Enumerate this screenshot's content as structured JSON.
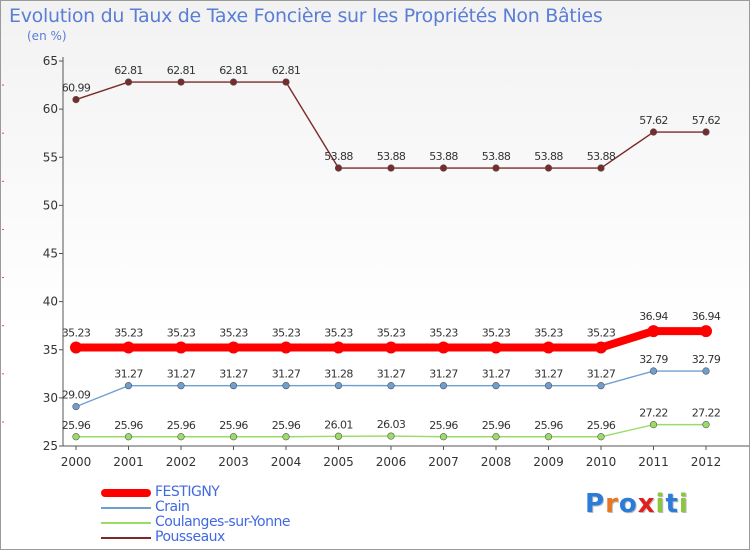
{
  "title": "Evolution du Taux de Taxe Foncière sur les Propriétés Non Bâties",
  "subtitle": "(en %)",
  "logo": {
    "text": "Proxiti",
    "colors": [
      "#2b7bd8",
      "#e87722",
      "#2b7bd8",
      "#e02020",
      "#8cc63f",
      "#2b7bd8",
      "#8cc63f"
    ]
  },
  "chart_data": {
    "type": "line",
    "title": "Evolution du Taux de Taxe Foncière sur les Propriétés Non Bâties",
    "ylabel": "(en %)",
    "xlabel": "",
    "categories": [
      "2000",
      "2001",
      "2002",
      "2003",
      "2004",
      "2005",
      "2006",
      "2007",
      "2008",
      "2009",
      "2010",
      "2011",
      "2012"
    ],
    "ylim": [
      25,
      65
    ],
    "yticks": [
      25,
      30,
      35,
      40,
      45,
      50,
      55,
      60,
      65
    ],
    "grid": false,
    "legend": "bottom-left",
    "series": [
      {
        "name": "FESTIGNY",
        "color": "#ff0000",
        "emphasis": true,
        "values": [
          35.23,
          35.23,
          35.23,
          35.23,
          35.23,
          35.23,
          35.23,
          35.23,
          35.23,
          35.23,
          35.23,
          36.94,
          36.94
        ],
        "labels": [
          "35.23",
          "35.23",
          "35.23",
          "35.23",
          "35.23",
          "35.23",
          "35.23",
          "35.23",
          "35.23",
          "35.23",
          "35.23",
          "36.94",
          "36.94"
        ]
      },
      {
        "name": "Crain",
        "color": "#6f9fd0",
        "values": [
          29.09,
          31.27,
          31.27,
          31.27,
          31.27,
          31.28,
          31.27,
          31.27,
          31.27,
          31.27,
          31.27,
          32.79,
          32.79
        ],
        "labels": [
          "29.09",
          "31.27",
          "31.27",
          "31.27",
          "31.27",
          "31.28",
          "31.27",
          "31.27",
          "31.27",
          "31.27",
          "31.27",
          "32.79",
          "32.79"
        ]
      },
      {
        "name": "Coulanges-sur-Yonne",
        "color": "#99dd66",
        "values": [
          25.96,
          25.96,
          25.96,
          25.96,
          25.96,
          26.01,
          26.03,
          25.96,
          25.96,
          25.96,
          25.96,
          27.22,
          27.22
        ],
        "labels": [
          "25.96",
          "25.96",
          "25.96",
          "25.96",
          "25.96",
          "26.01",
          "26.03",
          "25.96",
          "25.96",
          "25.96",
          "25.96",
          "27.22",
          "27.22"
        ]
      },
      {
        "name": "Pousseaux",
        "color": "#7a2a2a",
        "values": [
          60.99,
          62.81,
          62.81,
          62.81,
          62.81,
          53.88,
          53.88,
          53.88,
          53.88,
          53.88,
          53.88,
          57.62,
          57.62
        ],
        "labels": [
          "60.99",
          "62.81",
          "62.81",
          "62.81",
          "62.81",
          "53.88",
          "53.88",
          "53.88",
          "53.88",
          "53.88",
          "53.88",
          "57.62",
          "57.62"
        ]
      }
    ]
  }
}
